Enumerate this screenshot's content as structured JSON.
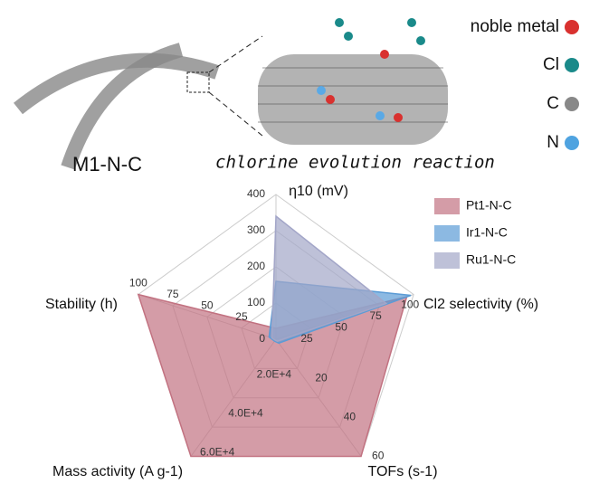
{
  "illustration": {
    "labels": [
      "noble metal",
      "Cl",
      "C",
      "N"
    ],
    "material": "M1-N-C",
    "reaction": "chlorine evolution reaction"
  },
  "chart_data": {
    "type": "radar",
    "axes": [
      {
        "label": "η10 (mV)",
        "lim": [
          0,
          400
        ],
        "ticks": [
          0,
          100,
          200,
          300,
          400
        ]
      },
      {
        "label": "Cl2 selectivity (%)",
        "lim": [
          0,
          100
        ],
        "ticks": [
          25,
          50,
          75,
          100
        ]
      },
      {
        "label": "TOFs (s-1)",
        "lim": [
          0,
          60
        ],
        "ticks": [
          20,
          40,
          60
        ]
      },
      {
        "label": "Mass activity (A g-1)",
        "lim": [
          0,
          60000
        ],
        "ticks": [
          {
            "value": 20000,
            "label": "2.0E+4"
          },
          {
            "value": 40000,
            "label": "4.0E+4"
          },
          {
            "value": 60000,
            "label": "6.0E+4"
          }
        ]
      },
      {
        "label": "Stability (h)",
        "lim": [
          0,
          100
        ],
        "ticks": [
          25,
          50,
          75,
          100
        ]
      }
    ],
    "series": [
      {
        "name": "Pt1-N-C",
        "color": "#c27281",
        "values": [
          30,
          95,
          60,
          60000,
          100
        ]
      },
      {
        "name": "Ir1-N-C",
        "color": "#5b9bd5",
        "values": [
          160,
          98,
          2,
          1000,
          5
        ]
      },
      {
        "name": "Ru1-N-C",
        "color": "#a3a6c8",
        "values": [
          340,
          80,
          1,
          500,
          3
        ]
      }
    ],
    "legend": "upper right"
  }
}
